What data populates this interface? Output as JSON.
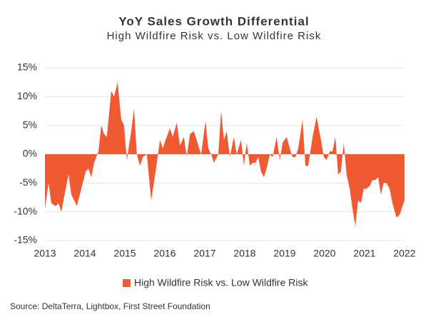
{
  "chart_data": {
    "type": "area",
    "title": "YoY Sales Growth Differential",
    "subtitle": "High Wildfire Risk vs. Low Wildfire Risk",
    "source": "Source: DeltaTerra, Lightbox, First Street Foundation",
    "xlim": [
      2013,
      2022
    ],
    "xticks": [
      2013,
      2014,
      2015,
      2016,
      2017,
      2018,
      2019,
      2020,
      2021,
      2022
    ],
    "ylim": [
      -15,
      15
    ],
    "yticks": [
      {
        "value": -15,
        "label": "-15%"
      },
      {
        "value": -10,
        "label": "-10%"
      },
      {
        "value": -5,
        "label": "-5%"
      },
      {
        "value": 0,
        "label": "0%"
      },
      {
        "value": 5,
        "label": "5%"
      },
      {
        "value": 10,
        "label": "10%"
      },
      {
        "value": 15,
        "label": "15%"
      }
    ],
    "grid": true,
    "legend": "bottom",
    "series": [
      {
        "name": "High Wildfire Risk vs. Low Wildfire Risk",
        "color": "#f05a33",
        "x": [
          2013.0,
          2013.09,
          2013.16,
          2013.27,
          2013.34,
          2013.41,
          2013.52,
          2013.59,
          2013.66,
          2013.8,
          2013.91,
          2014.02,
          2014.09,
          2014.16,
          2014.23,
          2014.34,
          2014.41,
          2014.48,
          2014.55,
          2014.66,
          2014.73,
          2014.82,
          2014.91,
          2014.98,
          2015.05,
          2015.16,
          2015.23,
          2015.3,
          2015.38,
          2015.45,
          2015.55,
          2015.66,
          2015.77,
          2015.88,
          2015.95,
          2016.02,
          2016.13,
          2016.2,
          2016.3,
          2016.38,
          2016.48,
          2016.55,
          2016.63,
          2016.73,
          2016.84,
          2016.91,
          2017.02,
          2017.09,
          2017.16,
          2017.23,
          2017.34,
          2017.41,
          2017.48,
          2017.55,
          2017.63,
          2017.73,
          2017.8,
          2017.91,
          2017.98,
          2018.05,
          2018.13,
          2018.2,
          2018.27,
          2018.34,
          2018.41,
          2018.48,
          2018.55,
          2018.63,
          2018.7,
          2018.8,
          2018.88,
          2018.95,
          2019.05,
          2019.13,
          2019.2,
          2019.27,
          2019.34,
          2019.45,
          2019.52,
          2019.59,
          2019.7,
          2019.8,
          2019.91,
          2019.98,
          2020.05,
          2020.13,
          2020.2,
          2020.27,
          2020.34,
          2020.41,
          2020.48,
          2020.55,
          2020.63,
          2020.7,
          2020.77,
          2020.84,
          2020.91,
          2020.98,
          2021.05,
          2021.13,
          2021.2,
          2021.27,
          2021.34,
          2021.41,
          2021.48,
          2021.55,
          2021.63,
          2021.7,
          2021.8,
          2021.88,
          2022.0
        ],
        "values": [
          -9.5,
          -5,
          -8.5,
          -9,
          -8.5,
          -10,
          -6,
          -3.5,
          -7,
          -9,
          -6,
          -3,
          -2.5,
          -4,
          -1.5,
          0.5,
          5,
          3.5,
          3,
          11,
          10,
          12.5,
          6,
          5,
          -1,
          4,
          8,
          0,
          -2,
          -0.5,
          0,
          -8,
          -3,
          2.5,
          1,
          2.5,
          4.5,
          3,
          5.5,
          1.5,
          3,
          -0.5,
          3.5,
          4,
          1.5,
          0,
          5.8,
          1,
          0,
          -1.5,
          0,
          7.5,
          2.5,
          4,
          -0.5,
          3,
          0,
          2.5,
          -2,
          2,
          -2,
          -1.5,
          -1.5,
          -0.5,
          -3,
          -4,
          -2.5,
          0,
          -0.5,
          3,
          -1,
          2,
          3,
          1,
          -0.5,
          -0.5,
          1,
          6,
          -2,
          -2,
          3,
          6.5,
          2.5,
          -0.5,
          -1,
          0.5,
          0.5,
          3,
          -3.5,
          -3,
          2,
          -3.5,
          -6,
          -9.5,
          -12.5,
          -8,
          -8.5,
          -6,
          -6,
          -5.5,
          -4.5,
          -4.5,
          -4,
          -7,
          -5,
          -5,
          -6,
          -8.5,
          -11,
          -10.5,
          -8
        ]
      }
    ]
  }
}
